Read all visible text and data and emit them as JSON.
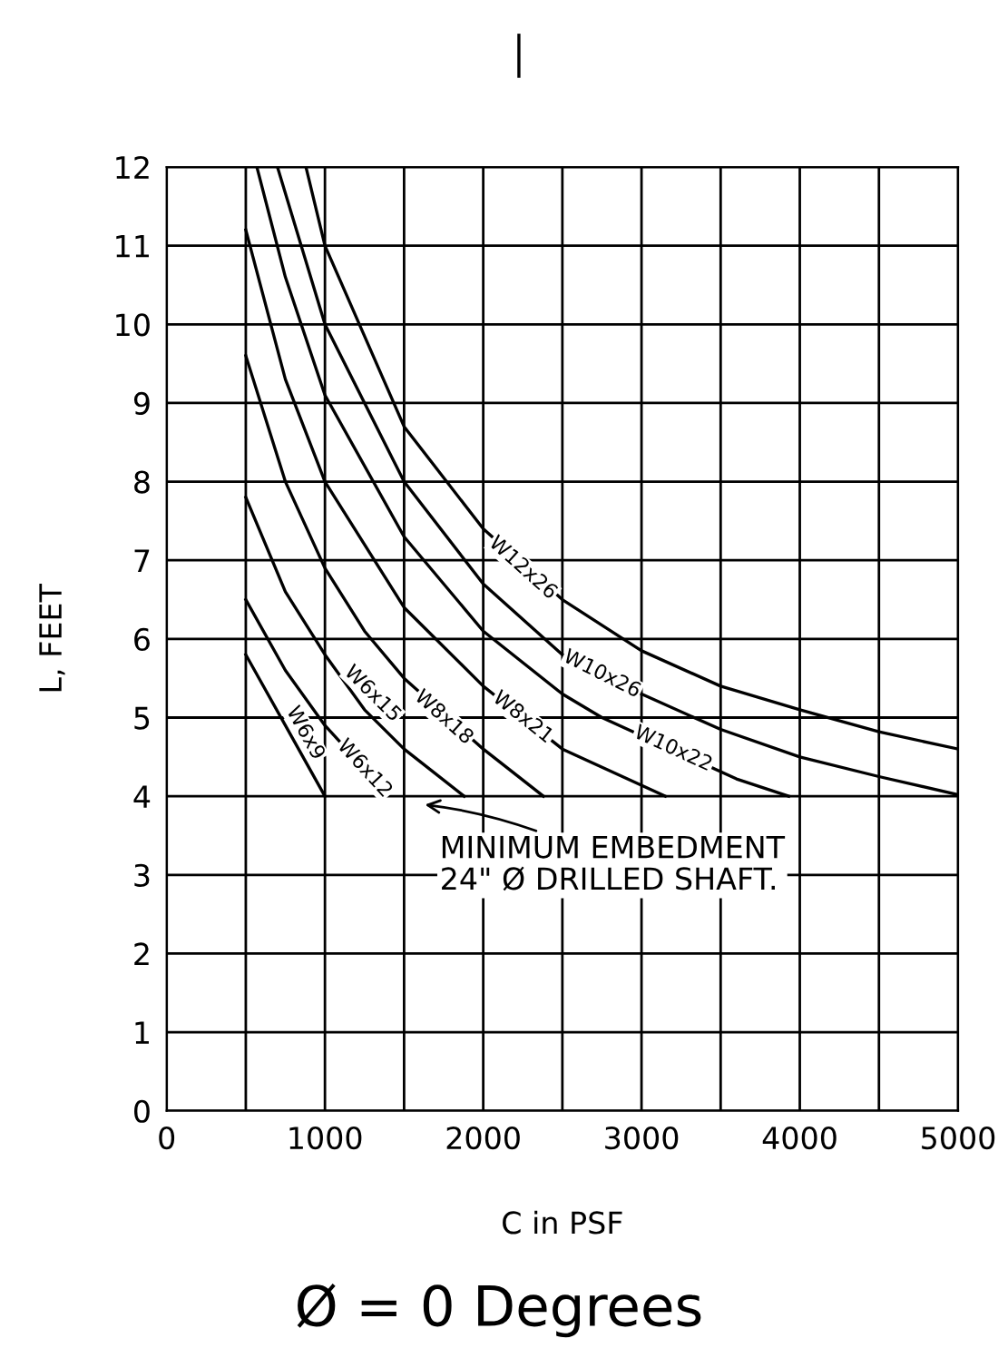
{
  "chart_data": {
    "type": "line",
    "title": "I",
    "xlabel": "C in PSF",
    "ylabel": "L, FEET",
    "xlim": [
      0,
      5000
    ],
    "ylim": [
      0,
      12
    ],
    "xticks": [
      0,
      {
        "value": 500,
        "label": null
      },
      1000,
      {
        "value": 1500,
        "label": null
      },
      2000,
      {
        "value": 2500,
        "label": null
      },
      3000,
      {
        "value": 3500,
        "label": null
      },
      4000,
      {
        "value": 4500,
        "label": null
      },
      5000
    ],
    "yticks": [
      0,
      1,
      2,
      3,
      4,
      5,
      6,
      7,
      8,
      9,
      10,
      11,
      12
    ],
    "grid": true,
    "marker": "none",
    "line_style": "solid",
    "series": [
      {
        "color": "#000000",
        "x": [
          500,
          750,
          1000
        ],
        "values": [
          5.8,
          4.9,
          4.0
        ]
      },
      {
        "color": "#000000",
        "x": [
          500,
          750,
          1000,
          1250,
          1380
        ],
        "values": [
          6.5,
          5.6,
          4.9,
          4.35,
          4.0
        ]
      },
      {
        "color": "#000000",
        "x": [
          500,
          750,
          1000,
          1250,
          1500,
          1880
        ],
        "values": [
          7.8,
          6.6,
          5.8,
          5.1,
          4.6,
          4.0
        ]
      },
      {
        "color": "#000000",
        "x": [
          500,
          750,
          1000,
          1250,
          1500,
          2000,
          2380
        ],
        "values": [
          9.6,
          8.0,
          6.9,
          6.1,
          5.5,
          4.6,
          4.0
        ]
      },
      {
        "color": "#000000",
        "x": [
          500,
          750,
          1000,
          1500,
          2000,
          2500,
          3150
        ],
        "values": [
          11.2,
          9.3,
          8.0,
          6.4,
          5.4,
          4.6,
          4.0
        ]
      },
      {
        "color": "#000000",
        "x": [
          570,
          750,
          1000,
          1500,
          2000,
          2500,
          2750,
          3600,
          3930
        ],
        "values": [
          12,
          10.6,
          9.1,
          7.3,
          6.1,
          5.3,
          5.0,
          4.22,
          4.0
        ]
      },
      {
        "color": "#000000",
        "x": [
          700,
          1000,
          1500,
          2000,
          2500,
          3000,
          3500,
          4000,
          4500,
          5000
        ],
        "values": [
          12,
          10.0,
          8.0,
          6.7,
          5.8,
          5.3,
          4.85,
          4.5,
          4.25,
          4.02
        ]
      },
      {
        "color": "#000000",
        "x": [
          880,
          1000,
          1500,
          2000,
          2500,
          3000,
          3500,
          4000,
          4500,
          5000
        ],
        "values": [
          12,
          11.0,
          8.7,
          7.4,
          6.5,
          5.85,
          5.4,
          5.1,
          4.82,
          4.6
        ]
      }
    ],
    "annotations": [
      {
        "text": "W6x9",
        "x": 875,
        "y": 4.8
      },
      {
        "text": "W6x12",
        "x": 1250,
        "y": 4.35
      },
      {
        "text": "W6x15",
        "x": 1300,
        "y": 5.3
      },
      {
        "text": "W8x18",
        "x": 1750,
        "y": 5.0
      },
      {
        "text": "W8x21",
        "x": 2250,
        "y": 5.0
      },
      {
        "text": "W10x22",
        "x": 3200,
        "y": 4.6
      },
      {
        "text": "W10x26",
        "x": 2750,
        "y": 5.55
      },
      {
        "text": "W12x26",
        "x": 2250,
        "y": 6.9
      },
      "MINIMUM EMBEDMENT\n24\" Ø DRILLED SHAFT.",
      "Ø = 0 Degrees"
    ]
  }
}
